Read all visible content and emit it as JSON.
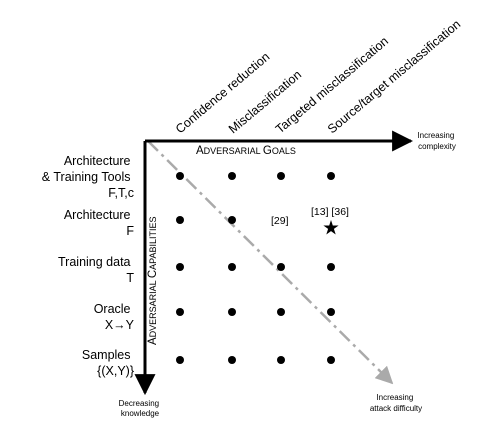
{
  "goals": [
    "Confidence reduction",
    "Misclassification",
    "Targeted misclassification",
    "Source/target misclassification"
  ],
  "x_axis": {
    "title_first": "A",
    "title_rest": "DVERSARIAL ",
    "title_first2": "G",
    "title_rest2": "OALS",
    "end_label_line1": "Increasing",
    "end_label_line2": "complexity"
  },
  "y_axis": {
    "title_first": "A",
    "title_rest": "DVERSARIAL ",
    "title_first2": "C",
    "title_rest2": "APABILITIES",
    "end_label_line1": "Decreasing",
    "end_label_line2": "knowledge"
  },
  "capabilities": [
    {
      "line1": "Architecture",
      "line2": "& Training Tools",
      "line3": "F,T,c"
    },
    {
      "line1": "Architecture",
      "line2": "F"
    },
    {
      "line1": "Training data",
      "line2": "T"
    },
    {
      "line1": "Oracle",
      "line2": "X→Y"
    },
    {
      "line1": "Samples",
      "line2": "{(X,Y)}"
    }
  ],
  "annotations": {
    "ref_29": "[29]",
    "ref_13_36": "[13] [36]",
    "star_icon": "star-icon"
  },
  "diagonal": {
    "label_line1": "Increasing",
    "label_line2": "attack difficulty",
    "color": "#aaaaaa"
  }
}
